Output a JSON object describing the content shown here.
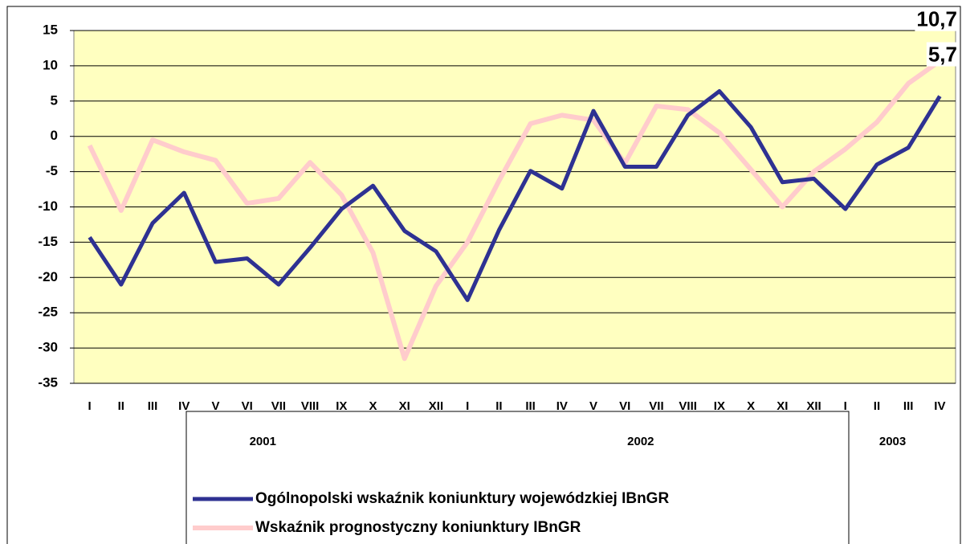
{
  "chart_data": {
    "type": "line",
    "categories": [
      "I",
      "II",
      "III",
      "IV",
      "V",
      "VI",
      "VII",
      "VIII",
      "IX",
      "X",
      "XI",
      "XII",
      "I",
      "II",
      "III",
      "IV",
      "V",
      "VI",
      "VII",
      "VIII",
      "IX",
      "X",
      "XI",
      "XII",
      "I",
      "II",
      "III",
      "IV"
    ],
    "groups": [
      {
        "label": "2001",
        "count": 12
      },
      {
        "label": "2002",
        "count": 12
      },
      {
        "label": "2003",
        "count": 4
      }
    ],
    "series": [
      {
        "name": "Ogólnopolski wskaźnik koniunktury wojewódzkiej IBnGR",
        "color": "#2e3192",
        "values": [
          -14.3,
          -21,
          -12.3,
          -8,
          -17.8,
          -17.3,
          -21,
          -15.8,
          -10.3,
          -7,
          -13.4,
          -16.3,
          -23.2,
          -13.3,
          -4.9,
          -7.4,
          3.6,
          -4.3,
          -4.3,
          3,
          6.4,
          1.3,
          -6.5,
          -6,
          -10.3,
          -4,
          -1.6,
          5.7
        ],
        "value_labels": [
          null,
          null,
          null,
          null,
          null,
          null,
          null,
          null,
          null,
          null,
          null,
          null,
          null,
          null,
          null,
          null,
          null,
          null,
          null,
          null,
          null,
          null,
          null,
          null,
          null,
          null,
          null,
          "5,7"
        ]
      },
      {
        "name": "Wskaźnik prognostyczny koniunktury IBnGR",
        "color": "#ffcccc",
        "values": [
          -1.3,
          -10.5,
          -0.5,
          -2.2,
          -3.4,
          -9.5,
          -8.8,
          -3.7,
          -8.3,
          -16.5,
          -31.5,
          -21.2,
          -15,
          -6.3,
          1.8,
          3,
          2.3,
          -3.8,
          4.3,
          3.8,
          0.5,
          -4.7,
          -10,
          -5,
          -1.8,
          2,
          7.5,
          10.7
        ],
        "value_labels": [
          null,
          null,
          null,
          null,
          null,
          null,
          null,
          null,
          null,
          null,
          null,
          null,
          null,
          null,
          null,
          null,
          null,
          null,
          null,
          null,
          null,
          null,
          null,
          null,
          null,
          null,
          null,
          "10,7"
        ]
      }
    ],
    "ylim": [
      -35,
      15
    ],
    "yticks": [
      -35,
      -30,
      -25,
      -20,
      -15,
      -10,
      -5,
      0,
      5,
      10,
      15
    ],
    "grid": true
  }
}
